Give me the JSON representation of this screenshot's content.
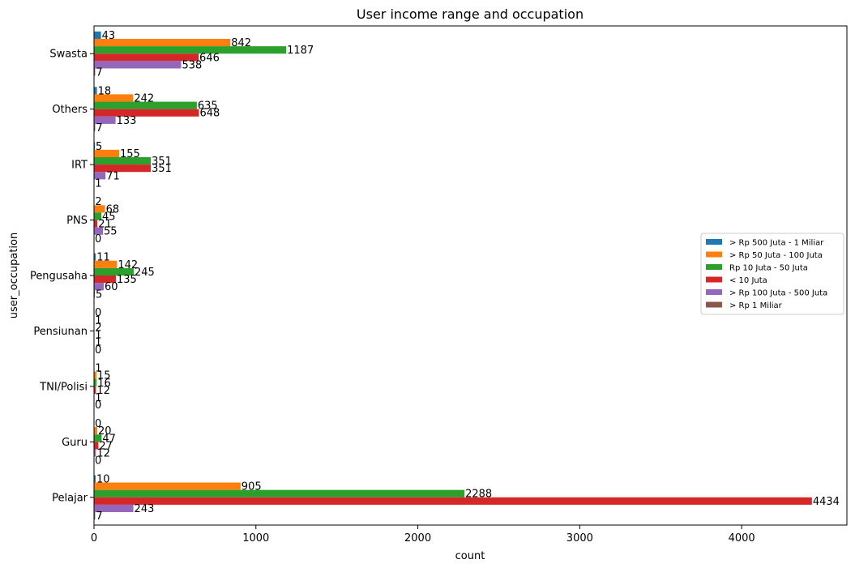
{
  "chart_data": {
    "type": "bar",
    "orientation": "horizontal",
    "title": "User income range and occupation",
    "xlabel": "count",
    "ylabel": "user_occupation",
    "xlim": [
      0,
      4650
    ],
    "xticks": [
      0,
      1000,
      2000,
      3000,
      4000
    ],
    "grid": false,
    "legend_position": "right",
    "categories": [
      "Swasta",
      "Others",
      "IRT",
      "PNS",
      "Pengusaha",
      "Pensiunan",
      "TNI/Polisi",
      "Guru",
      "Pelajar"
    ],
    "series": [
      {
        "name": "> Rp 500 Juta - 1 Miliar",
        "color": "#1f77b4",
        "values": [
          43,
          18,
          5,
          2,
          11,
          0,
          1,
          0,
          10
        ]
      },
      {
        "name": "> Rp 50 Juta - 100 Juta",
        "color": "#ff7f0e",
        "values": [
          842,
          242,
          155,
          68,
          142,
          1,
          15,
          20,
          905
        ]
      },
      {
        "name": "Rp 10 Juta - 50 Juta",
        "color": "#2ca02c",
        "values": [
          1187,
          635,
          351,
          45,
          245,
          2,
          16,
          47,
          2288
        ]
      },
      {
        "name": "< 10 Juta",
        "color": "#d62728",
        "values": [
          646,
          648,
          351,
          21,
          135,
          1,
          12,
          27,
          4434
        ]
      },
      {
        "name": "> Rp 100 Juta - 500 Juta",
        "color": "#9467bd",
        "values": [
          538,
          133,
          71,
          55,
          60,
          1,
          1,
          12,
          243
        ]
      },
      {
        "name": "> Rp 1 Miliar",
        "color": "#8c564b",
        "values": [
          7,
          7,
          1,
          0,
          5,
          0,
          0,
          0,
          7
        ]
      }
    ]
  }
}
